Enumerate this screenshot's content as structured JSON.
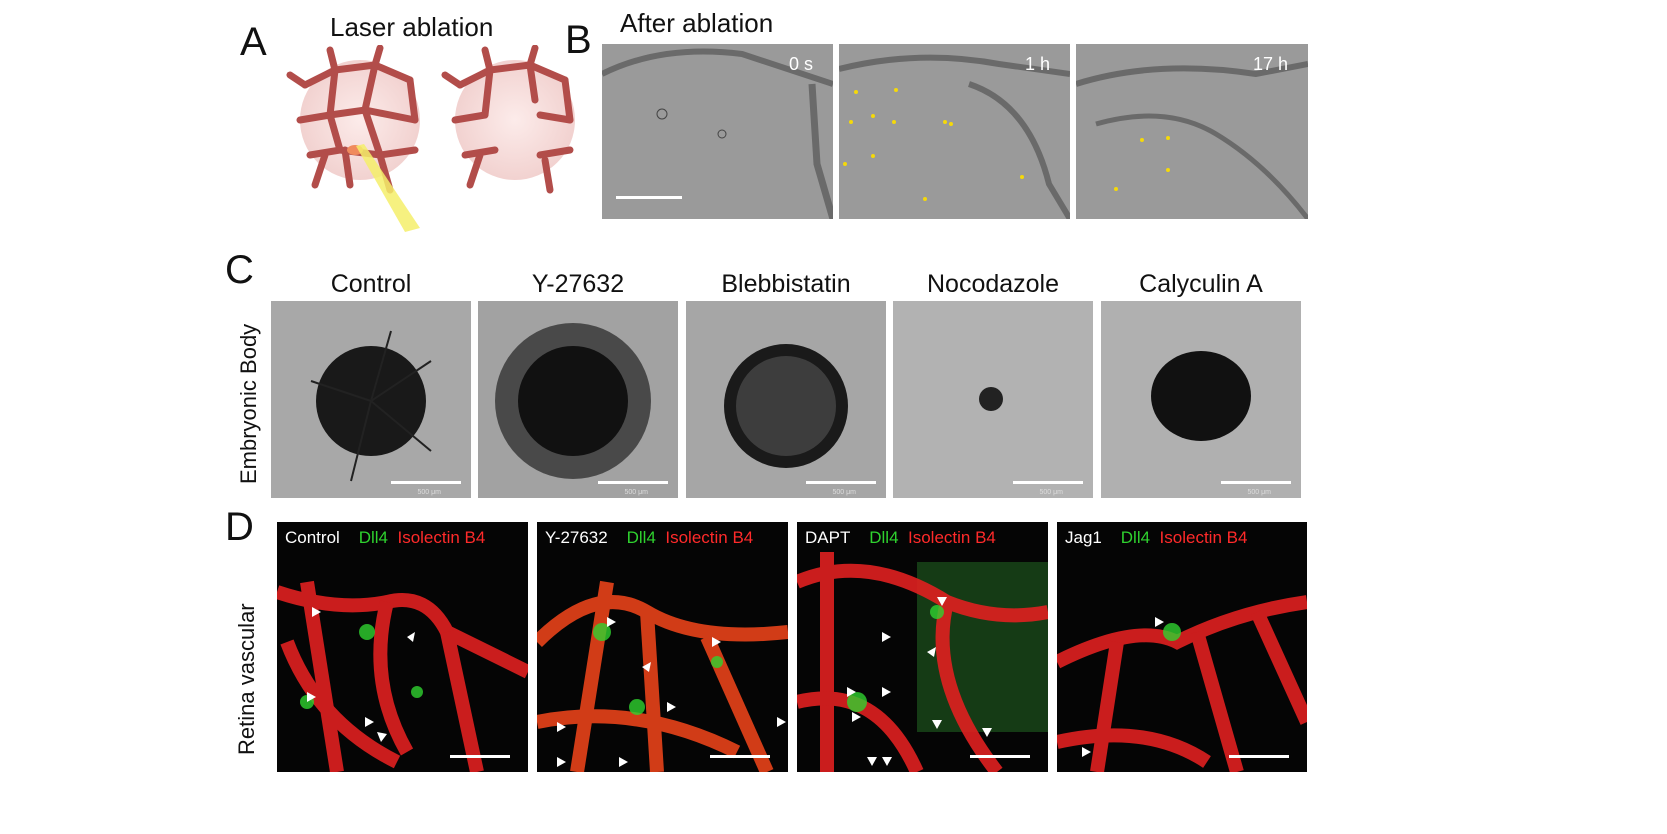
{
  "panels": {
    "A": {
      "letter": "A",
      "title": "Laser ablation"
    },
    "B": {
      "letter": "B",
      "title": "After ablation",
      "timepoints": [
        "0 s",
        "1 h",
        "17 h"
      ]
    },
    "C": {
      "letter": "C",
      "row_label": "Embryonic Body",
      "columns": [
        "Control",
        "Y-27632",
        "Blebbistatin",
        "Nocodazole",
        "Calyculin A"
      ],
      "scale_label": "500 μm"
    },
    "D": {
      "letter": "D",
      "row_label": "Retina vascular",
      "images": [
        {
          "condition": "Control"
        },
        {
          "condition": "Y-27632"
        },
        {
          "condition": "DAPT"
        },
        {
          "condition": "Jag1"
        }
      ],
      "stain_green": "Dll4",
      "stain_red": "Isolectin B4"
    }
  },
  "colors": {
    "vessel": "#c0504d",
    "green_stain": "#2fd22f",
    "red_stain": "#ff2a2a",
    "marker_dot": "#f5d90a"
  }
}
